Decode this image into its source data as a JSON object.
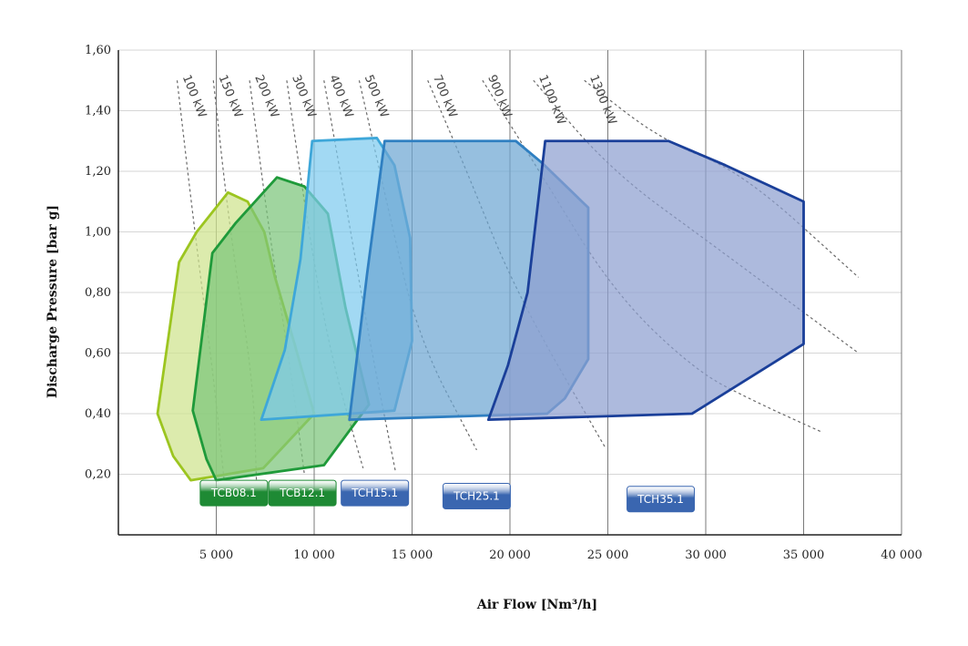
{
  "chart_data": {
    "type": "area",
    "title": "",
    "xlabel": "Air Flow [Nm³/h]",
    "ylabel": "Discharge Pressure [bar g]",
    "xlim": [
      0,
      40000
    ],
    "ylim": [
      0.0,
      1.6
    ],
    "x_ticks": [
      {
        "value": 5000,
        "label": "5 000"
      },
      {
        "value": 10000,
        "label": "10 000"
      },
      {
        "value": 15000,
        "label": "15 000"
      },
      {
        "value": 20000,
        "label": "20 000"
      },
      {
        "value": 25000,
        "label": "25 000"
      },
      {
        "value": 30000,
        "label": "30 000"
      },
      {
        "value": 35000,
        "label": "35 000"
      },
      {
        "value": 40000,
        "label": "40 000"
      }
    ],
    "y_ticks": [
      {
        "value": 0.2,
        "label": "0,20"
      },
      {
        "value": 0.4,
        "label": "0,40"
      },
      {
        "value": 0.6,
        "label": "0,60"
      },
      {
        "value": 0.8,
        "label": "0,80"
      },
      {
        "value": 1.0,
        "label": "1,00"
      },
      {
        "value": 1.2,
        "label": "1,20"
      },
      {
        "value": 1.4,
        "label": "1,40"
      },
      {
        "value": 1.6,
        "label": "1,60"
      }
    ],
    "grid": true,
    "power_lines": [
      {
        "label": "100 kW",
        "points": [
          [
            3000,
            1.5
          ],
          [
            3900,
            1.0
          ],
          [
            4900,
            0.5
          ],
          [
            5400,
            0.18
          ]
        ]
      },
      {
        "label": "150 kW",
        "points": [
          [
            4850,
            1.5
          ],
          [
            5700,
            1.0
          ],
          [
            6900,
            0.5
          ],
          [
            7050,
            0.18
          ]
        ]
      },
      {
        "label": "200 kW",
        "points": [
          [
            6700,
            1.5
          ],
          [
            7700,
            1.0
          ],
          [
            8900,
            0.5
          ],
          [
            9500,
            0.2
          ]
        ]
      },
      {
        "label": "300 kW",
        "points": [
          [
            8600,
            1.5
          ],
          [
            9600,
            1.05
          ],
          [
            10800,
            0.6
          ],
          [
            12500,
            0.22
          ]
        ]
      },
      {
        "label": "400 kW",
        "points": [
          [
            10500,
            1.5
          ],
          [
            11600,
            1.1
          ],
          [
            12800,
            0.65
          ],
          [
            14150,
            0.21
          ]
        ]
      },
      {
        "label": "500 kW",
        "points": [
          [
            12300,
            1.5
          ],
          [
            13700,
            1.1
          ],
          [
            15300,
            0.65
          ],
          [
            18300,
            0.28
          ]
        ]
      },
      {
        "label": "700 kW",
        "points": [
          [
            15800,
            1.5
          ],
          [
            17800,
            1.2
          ],
          [
            20300,
            0.8
          ],
          [
            24850,
            0.29
          ]
        ]
      },
      {
        "label": "900 kW",
        "points": [
          [
            18600,
            1.5
          ],
          [
            21500,
            1.2
          ],
          [
            25300,
            0.8
          ],
          [
            29500,
            0.54
          ]
        ],
        "extra": [
          [
            32500,
            0.44
          ],
          [
            35900,
            0.34
          ]
        ]
      },
      {
        "label": "1100 kW",
        "points": [
          [
            21200,
            1.5
          ],
          [
            25200,
            1.2
          ],
          [
            30300,
            0.96
          ],
          [
            37800,
            0.6
          ]
        ]
      },
      {
        "label": "1300 kW",
        "points": [
          [
            23800,
            1.5
          ],
          [
            27800,
            1.3
          ],
          [
            31800,
            1.2
          ],
          [
            37800,
            0.85
          ]
        ]
      }
    ],
    "series": [
      {
        "name": "TCB08.1",
        "color": "#9cc520",
        "fill": "#cfe38e",
        "points": [
          [
            3100,
            0.9
          ],
          [
            4000,
            1.0
          ],
          [
            5600,
            1.13
          ],
          [
            6600,
            1.1
          ],
          [
            7450,
            1.0
          ],
          [
            8000,
            0.85
          ],
          [
            9000,
            0.63
          ],
          [
            10000,
            0.4
          ],
          [
            7400,
            0.22
          ],
          [
            3700,
            0.18
          ],
          [
            2800,
            0.26
          ],
          [
            2000,
            0.4
          ]
        ]
      },
      {
        "name": "TCB12.1",
        "color": "#1f9a3a",
        "fill": "#7cc57a",
        "points": [
          [
            4800,
            0.93
          ],
          [
            6000,
            1.03
          ],
          [
            8100,
            1.18
          ],
          [
            9500,
            1.15
          ],
          [
            10700,
            1.06
          ],
          [
            11600,
            0.75
          ],
          [
            12800,
            0.43
          ],
          [
            12100,
            0.37
          ],
          [
            10500,
            0.23
          ],
          [
            5000,
            0.18
          ],
          [
            4500,
            0.25
          ],
          [
            3800,
            0.41
          ]
        ]
      },
      {
        "name": "TCH15.1",
        "color": "#3ea7d9",
        "fill": "#7ecbee",
        "points": [
          [
            9900,
            1.3
          ],
          [
            13200,
            1.31
          ],
          [
            14100,
            1.22
          ],
          [
            14900,
            0.98
          ],
          [
            15000,
            0.64
          ],
          [
            14100,
            0.41
          ],
          [
            7300,
            0.38
          ],
          [
            8500,
            0.61
          ],
          [
            9300,
            0.91
          ]
        ]
      },
      {
        "name": "TCH25.1",
        "color": "#2f7fc1",
        "fill": "#6ea6d3",
        "points": [
          [
            13600,
            1.3
          ],
          [
            20300,
            1.3
          ],
          [
            21600,
            1.23
          ],
          [
            24000,
            1.08
          ],
          [
            24000,
            0.58
          ],
          [
            22800,
            0.45
          ],
          [
            21900,
            0.4
          ],
          [
            11800,
            0.38
          ],
          [
            12700,
            0.86
          ]
        ]
      },
      {
        "name": "TCH35.1",
        "color": "#1a3f99",
        "fill": "#8d9fd0",
        "points": [
          [
            21800,
            1.3
          ],
          [
            28100,
            1.3
          ],
          [
            31000,
            1.22
          ],
          [
            35000,
            1.1
          ],
          [
            35000,
            0.63
          ],
          [
            29300,
            0.4
          ],
          [
            18900,
            0.38
          ],
          [
            19900,
            0.56
          ],
          [
            20900,
            0.8
          ]
        ]
      }
    ],
    "badges": [
      {
        "label": "TCB08.1",
        "x": 5900,
        "y": 0.18,
        "color": "#1e8a34"
      },
      {
        "label": "TCB12.1",
        "x": 9400,
        "y": 0.18,
        "color": "#1e8a34"
      },
      {
        "label": "TCH15.1",
        "x": 13100,
        "y": 0.18,
        "color": "#3a66b0"
      },
      {
        "label": "TCH25.1",
        "x": 18300,
        "y": 0.17,
        "color": "#3a66b0"
      },
      {
        "label": "TCH35.1",
        "x": 27700,
        "y": 0.16,
        "color": "#3a66b0"
      }
    ]
  }
}
